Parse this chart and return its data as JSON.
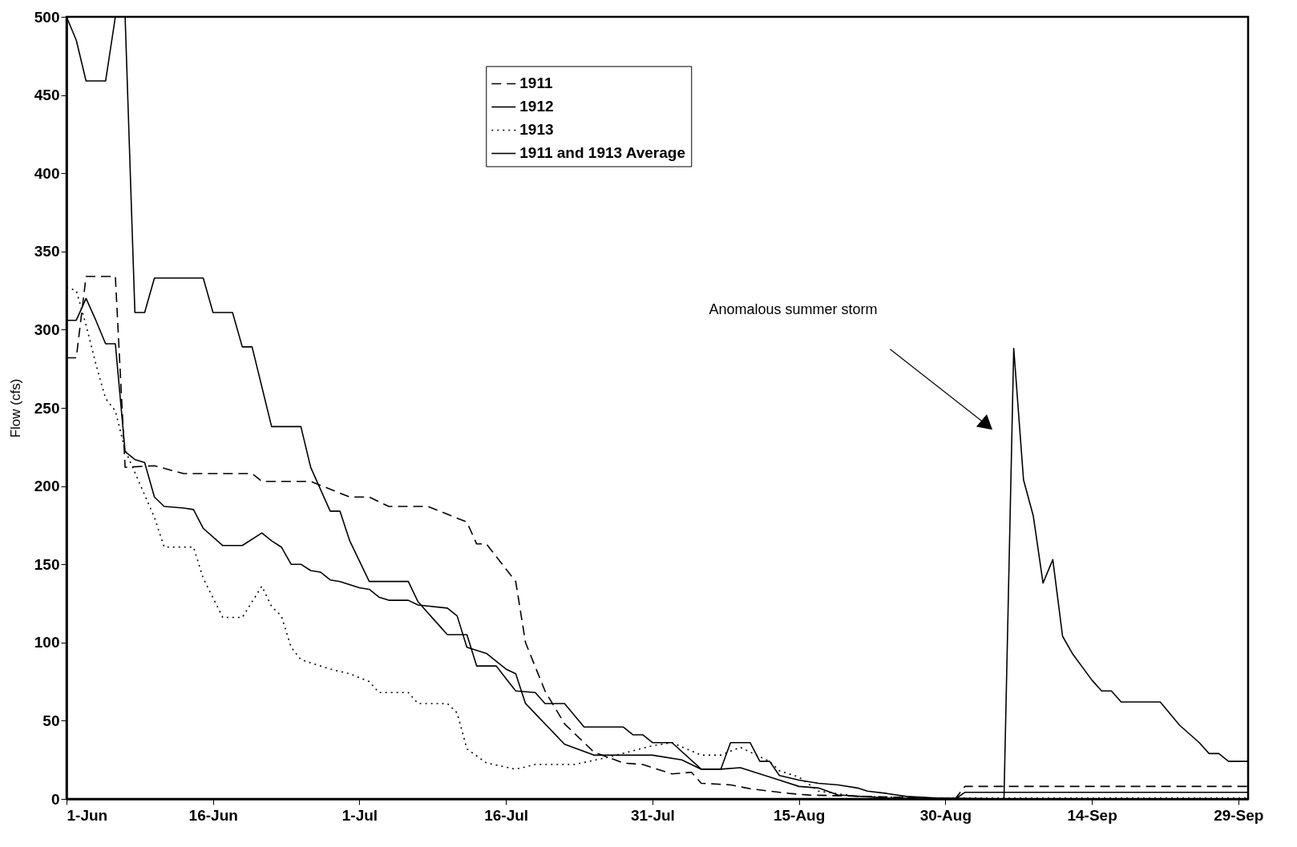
{
  "chart_data": {
    "type": "line",
    "ylabel": "Flow (cfs)",
    "xlim": [
      "--06-01",
      "--09-30"
    ],
    "xticks": [
      {
        "value": "--06-01",
        "label": "1-Jun"
      },
      {
        "value": "--06-16",
        "label": "16-Jun"
      },
      {
        "value": "--07-01",
        "label": "1-Jul"
      },
      {
        "value": "--07-16",
        "label": "16-Jul"
      },
      {
        "value": "--07-31",
        "label": "31-Jul"
      },
      {
        "value": "--08-15",
        "label": "15-Aug"
      },
      {
        "value": "--08-30",
        "label": "30-Aug"
      },
      {
        "value": "--09-14",
        "label": "14-Sep"
      },
      {
        "value": "--09-29",
        "label": "29-Sep"
      }
    ],
    "ylim": [
      0,
      500
    ],
    "yticks": [
      0,
      50,
      100,
      150,
      200,
      250,
      300,
      350,
      400,
      450,
      500
    ],
    "grid": false,
    "legend": "top",
    "marker": "none",
    "annotations": [
      "Anomalous summer storm"
    ],
    "series": [
      {
        "name": "1911",
        "color": "#000000",
        "line_style": "dashed",
        "x": [
          "--06-01",
          "--06-02",
          "--06-03",
          "--06-06",
          "--06-07",
          "--06-10",
          "--06-13",
          "--06-20",
          "--06-21",
          "--06-26",
          "--06-30",
          "--07-02",
          "--07-04",
          "--07-08",
          "--07-12",
          "--07-13",
          "--07-14",
          "--07-17",
          "--07-18",
          "--07-20",
          "--07-22",
          "--07-25",
          "--07-28",
          "--07-30",
          "--08-02",
          "--08-04",
          "--08-05",
          "--08-08",
          "--08-10",
          "--08-14",
          "--08-16",
          "--08-29",
          "--08-31",
          "--09-01",
          "--09-30"
        ],
        "values": [
          282,
          282,
          334,
          334,
          212,
          213,
          208,
          208,
          203,
          203,
          193,
          193,
          187,
          187,
          177,
          163,
          163,
          139,
          100,
          69,
          48,
          30,
          23,
          22,
          16,
          17,
          10,
          9,
          6.5,
          3.5,
          2.5,
          0.5,
          0,
          8,
          8
        ]
      },
      {
        "name": "1912",
        "color": "#000000",
        "line_style": "solid",
        "x": [
          "--06-01",
          "--06-02",
          "--06-03",
          "--06-05",
          "--06-06",
          "--06-07",
          "--06-08",
          "--06-09",
          "--06-10",
          "--06-15",
          "--06-16",
          "--06-18",
          "--06-19",
          "--06-20",
          "--06-22",
          "--06-25",
          "--06-26",
          "--06-28",
          "--06-29",
          "--06-30",
          "--07-02",
          "--07-06",
          "--07-07",
          "--07-09",
          "--07-10",
          "--07-12",
          "--07-13",
          "--07-15",
          "--07-16",
          "--07-17",
          "--07-19",
          "--07-20",
          "--07-22",
          "--07-24",
          "--07-28",
          "--07-29",
          "--07-30",
          "--07-31",
          "--08-02",
          "--08-05",
          "--08-07",
          "--08-08",
          "--08-10",
          "--08-11",
          "--08-12",
          "--08-13",
          "--08-15",
          "--08-17",
          "--08-19",
          "--08-21",
          "--08-22",
          "--08-24",
          "--08-26",
          "--08-29",
          "--09-05",
          "--09-06",
          "--09-07",
          "--09-08",
          "--09-09",
          "--09-10",
          "--09-11",
          "--09-12",
          "--09-14",
          "--09-15",
          "--09-16",
          "--09-17",
          "--09-21",
          "--09-23",
          "--09-25",
          "--09-26",
          "--09-27",
          "--09-28",
          "--09-30"
        ],
        "values": [
          500,
          485,
          459,
          459,
          500,
          500,
          311,
          311,
          333,
          333,
          311,
          311,
          289,
          289,
          238,
          238,
          212,
          184,
          184,
          165,
          139,
          139,
          126,
          112,
          105,
          105,
          85,
          85,
          77,
          69,
          68,
          61,
          61,
          46,
          46,
          41,
          41,
          36,
          36,
          19,
          19,
          36,
          36,
          24,
          24,
          15,
          12,
          10,
          9,
          7,
          5,
          3.5,
          1.6,
          0.6,
          0,
          288,
          204,
          181,
          138,
          153,
          104,
          93,
          76,
          69,
          69,
          62,
          62,
          47,
          36,
          29,
          29,
          24,
          24
        ]
      },
      {
        "name": "1913",
        "color": "#000000",
        "line_style": "dotted",
        "x": [
          "--06-01",
          "--06-02",
          "--06-03",
          "--06-04",
          "--06-05",
          "--06-06",
          "--06-07",
          "--06-10",
          "--06-11",
          "--06-14",
          "--06-15",
          "--06-17",
          "--06-19",
          "--06-21",
          "--06-22",
          "--06-23",
          "--06-24",
          "--06-25",
          "--06-28",
          "--06-30",
          "--07-02",
          "--07-03",
          "--07-06",
          "--07-07",
          "--07-10",
          "--07-11",
          "--07-12",
          "--07-14",
          "--07-17",
          "--07-19",
          "--07-23",
          "--07-26",
          "--07-31",
          "--08-02",
          "--08-05",
          "--08-07",
          "--08-09",
          "--08-12",
          "--08-13",
          "--08-15",
          "--08-17",
          "--08-21",
          "--08-29",
          "--09-30"
        ],
        "values": [
          327,
          325,
          303,
          278,
          256,
          248,
          223,
          180,
          161,
          161,
          141,
          116,
          116,
          136,
          123,
          117,
          97,
          89,
          83,
          80,
          75,
          68,
          68,
          61,
          61,
          55,
          32,
          23,
          19,
          22,
          22,
          26,
          34,
          36,
          28,
          28,
          33,
          24,
          18,
          14,
          5,
          1.6,
          0.5,
          0.5
        ]
      },
      {
        "name": "1911 and 1913 Average",
        "color": "#000000",
        "line_style": "solid",
        "x": [
          "--06-01",
          "--06-02",
          "--06-03",
          "--06-04",
          "--06-05",
          "--06-06",
          "--06-07",
          "--06-08",
          "--06-09",
          "--06-10",
          "--06-11",
          "--06-13",
          "--06-14",
          "--06-15",
          "--06-17",
          "--06-19",
          "--06-21",
          "--06-22",
          "--06-23",
          "--06-24",
          "--06-25",
          "--06-26",
          "--06-27",
          "--06-28",
          "--06-29",
          "--07-01",
          "--07-02",
          "--07-03",
          "--07-04",
          "--07-06",
          "--07-07",
          "--07-10",
          "--07-11",
          "--07-12",
          "--07-14",
          "--07-16",
          "--07-17",
          "--07-18",
          "--07-22",
          "--07-25",
          "--07-31",
          "--08-03",
          "--08-05",
          "--08-07",
          "--08-09",
          "--08-11",
          "--08-13",
          "--08-15",
          "--08-17",
          "--08-19",
          "--08-24",
          "--08-29",
          "--08-31",
          "--09-01",
          "--09-30"
        ],
        "values": [
          306,
          306,
          320,
          306,
          291,
          291,
          222,
          217,
          215,
          193,
          187,
          186,
          185,
          173,
          162,
          162,
          170,
          165,
          161,
          150,
          150,
          146,
          145,
          140,
          139,
          135,
          134,
          129,
          127,
          127,
          124,
          122,
          117,
          97,
          93,
          83,
          80,
          61,
          35,
          28,
          28,
          25,
          19,
          19,
          20,
          16,
          12,
          8,
          7,
          2.6,
          0.6,
          0,
          0,
          4.2,
          4.2
        ]
      }
    ]
  }
}
